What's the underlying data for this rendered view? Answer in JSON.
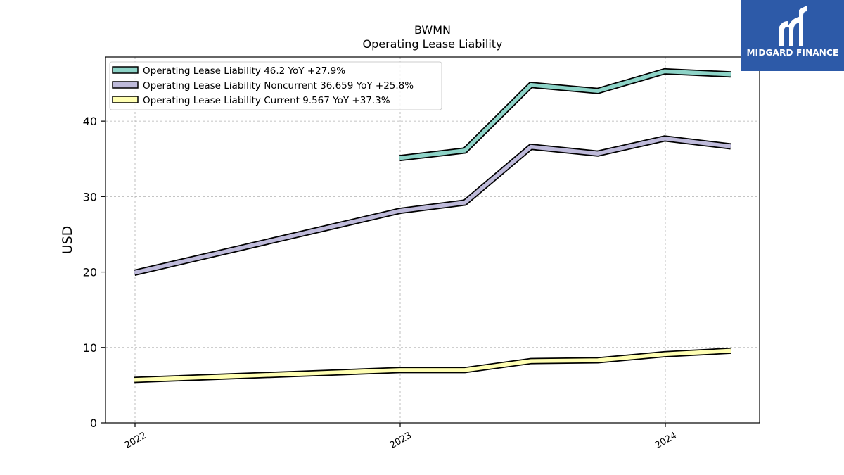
{
  "chart_data": {
    "type": "line",
    "title": "BWMN",
    "subtitle": "Operating Lease Liability",
    "ylabel": "USD",
    "xlabel": "",
    "ylim": [
      0,
      48.5
    ],
    "yticks": [
      0,
      10,
      20,
      30,
      40
    ],
    "xticks": [
      "2022",
      "2023",
      "2024"
    ],
    "grid": true,
    "legend_position": "top-left",
    "series": [
      {
        "name": "Operating Lease Liability",
        "legend_label": "Operating Lease Liability  46.2 YoY +27.9%",
        "color": "#8dd3c7",
        "x": [
          "2022-12-31",
          "2023-03-31",
          "2023-06-30",
          "2023-09-30",
          "2023-12-31",
          "2024-03-31"
        ],
        "y": [
          35.1,
          36.1,
          44.8,
          44.0,
          46.6,
          46.2
        ]
      },
      {
        "name": "Operating Lease Liability Noncurrent",
        "legend_label": "Operating Lease Liability Noncurrent  36.659 YoY +25.8%",
        "color": "#bebada",
        "x": [
          "2021-12-31",
          "2022-12-31",
          "2023-03-31",
          "2023-06-30",
          "2023-09-30",
          "2023-12-31",
          "2024-03-31"
        ],
        "y": [
          19.9,
          28.1,
          29.2,
          36.6,
          35.7,
          37.7,
          36.659
        ]
      },
      {
        "name": "Operating Lease Liability Current",
        "legend_label": "Operating Lease Liability Current  9.567 YoY +37.3%",
        "color": "#ffffb3",
        "x": [
          "2021-12-31",
          "2022-12-31",
          "2023-03-31",
          "2023-06-30",
          "2023-09-30",
          "2023-12-31",
          "2024-03-31"
        ],
        "y": [
          5.7,
          7.0,
          7.0,
          8.2,
          8.3,
          9.1,
          9.567
        ]
      }
    ]
  },
  "logo": {
    "text": "MIDGARD FINANCE",
    "color": "#2d5aa8"
  }
}
